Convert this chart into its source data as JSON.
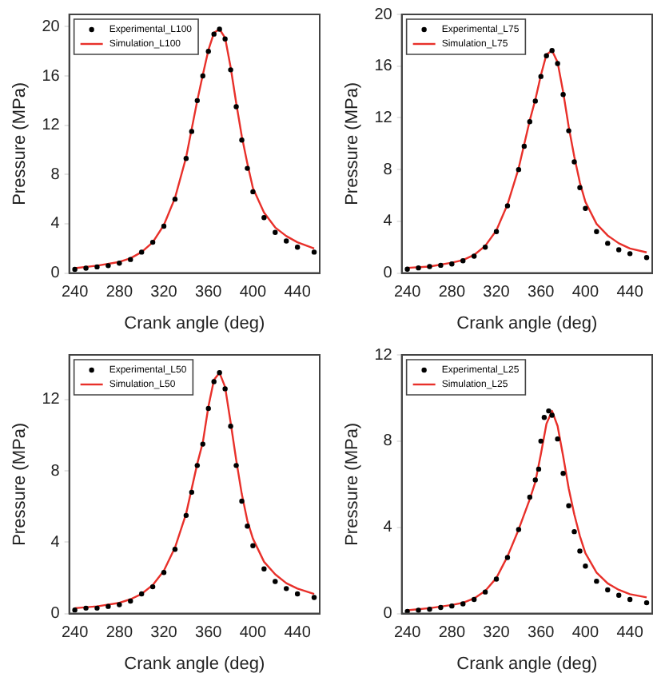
{
  "chart_data": [
    {
      "type": "line",
      "xlabel": "Crank angle (deg)",
      "ylabel": "Pressure (MPa)",
      "xlim": [
        235,
        460
      ],
      "xticks": [
        240,
        280,
        320,
        360,
        400,
        440
      ],
      "ylim": [
        0,
        21
      ],
      "yticks": [
        0,
        4,
        8,
        12,
        16,
        20
      ],
      "grid": false,
      "legend": "top left",
      "series": [
        {
          "name": "Experimental_L100",
          "type": "scatter",
          "marker": "circle",
          "color": "#000000",
          "x": [
            240,
            250,
            260,
            270,
            280,
            290,
            300,
            310,
            320,
            330,
            340,
            345,
            350,
            355,
            360,
            365,
            370,
            375,
            380,
            385,
            390,
            395,
            400,
            410,
            420,
            430,
            440,
            455
          ],
          "values": [
            0.3,
            0.4,
            0.5,
            0.6,
            0.8,
            1.1,
            1.7,
            2.5,
            3.8,
            6,
            9.3,
            11.5,
            14,
            16,
            18,
            19.4,
            19.8,
            19,
            16.5,
            13.5,
            10.8,
            8.5,
            6.6,
            4.5,
            3.3,
            2.6,
            2.1,
            1.7
          ]
        },
        {
          "name": "Simulation_L100",
          "type": "line",
          "color": "#e8302a",
          "x": [
            240,
            260,
            280,
            290,
            300,
            310,
            320,
            330,
            340,
            350,
            355,
            360,
            365,
            370,
            375,
            380,
            385,
            390,
            395,
            400,
            410,
            420,
            430,
            440,
            455
          ],
          "values": [
            0.4,
            0.6,
            0.9,
            1.2,
            1.7,
            2.5,
            3.9,
            6.1,
            9.4,
            14,
            16.1,
            18.1,
            19.5,
            19.8,
            19.1,
            16.7,
            13.8,
            11.1,
            8.9,
            6.9,
            4.9,
            3.7,
            3,
            2.5,
            2
          ]
        }
      ]
    },
    {
      "type": "line",
      "xlabel": "Crank angle (deg)",
      "ylabel": "Pressure (MPa)",
      "xlim": [
        235,
        460
      ],
      "xticks": [
        240,
        280,
        320,
        360,
        400,
        440
      ],
      "ylim": [
        0,
        20
      ],
      "yticks": [
        0,
        4,
        8,
        12,
        16,
        20
      ],
      "grid": false,
      "legend": "top left",
      "series": [
        {
          "name": "Experimental_L75",
          "type": "scatter",
          "marker": "circle",
          "color": "#000000",
          "x": [
            240,
            250,
            260,
            270,
            280,
            290,
            300,
            310,
            320,
            330,
            340,
            345,
            350,
            355,
            360,
            365,
            370,
            375,
            380,
            385,
            390,
            395,
            400,
            410,
            420,
            430,
            440,
            455
          ],
          "values": [
            0.3,
            0.4,
            0.5,
            0.6,
            0.7,
            0.95,
            1.3,
            2,
            3.2,
            5.2,
            8,
            9.8,
            11.7,
            13.3,
            15.2,
            16.8,
            17.2,
            16.2,
            13.8,
            11,
            8.6,
            6.6,
            5,
            3.2,
            2.3,
            1.8,
            1.5,
            1.2
          ]
        },
        {
          "name": "Simulation_L75",
          "type": "line",
          "color": "#e8302a",
          "x": [
            240,
            260,
            280,
            290,
            300,
            310,
            320,
            330,
            340,
            350,
            355,
            360,
            365,
            370,
            375,
            380,
            385,
            390,
            395,
            400,
            410,
            420,
            430,
            440,
            455
          ],
          "values": [
            0.4,
            0.5,
            0.8,
            1,
            1.4,
            2.1,
            3.3,
            5.3,
            8.1,
            11.8,
            13.4,
            15.3,
            16.9,
            17.2,
            16.3,
            14,
            11.3,
            9,
            7,
            5.5,
            3.8,
            2.9,
            2.3,
            1.9,
            1.6
          ]
        }
      ]
    },
    {
      "type": "line",
      "xlabel": "Crank angle (deg)",
      "ylabel": "Pressure (MPa)",
      "xlim": [
        235,
        460
      ],
      "xticks": [
        240,
        280,
        320,
        360,
        400,
        440
      ],
      "ylim": [
        0,
        14.5
      ],
      "yticks": [
        0,
        4,
        8,
        12
      ],
      "grid": false,
      "legend": "top left",
      "series": [
        {
          "name": "Experimental_L50",
          "type": "scatter",
          "marker": "circle",
          "color": "#000000",
          "x": [
            240,
            250,
            260,
            270,
            280,
            290,
            300,
            310,
            320,
            330,
            340,
            345,
            350,
            355,
            360,
            365,
            370,
            375,
            380,
            385,
            390,
            395,
            400,
            410,
            420,
            430,
            440,
            455
          ],
          "values": [
            0.2,
            0.3,
            0.3,
            0.4,
            0.5,
            0.7,
            1.1,
            1.5,
            2.3,
            3.6,
            5.5,
            6.8,
            8.3,
            9.5,
            11.5,
            13,
            13.5,
            12.6,
            10.5,
            8.3,
            6.3,
            4.9,
            3.8,
            2.5,
            1.8,
            1.4,
            1.1,
            0.9
          ]
        },
        {
          "name": "Simulation_L50",
          "type": "line",
          "color": "#e8302a",
          "x": [
            240,
            260,
            280,
            290,
            300,
            310,
            320,
            330,
            340,
            350,
            355,
            360,
            365,
            370,
            375,
            380,
            385,
            390,
            395,
            400,
            410,
            420,
            430,
            440,
            455
          ],
          "values": [
            0.3,
            0.4,
            0.6,
            0.8,
            1.1,
            1.6,
            2.4,
            3.7,
            5.6,
            8.4,
            9.6,
            11.6,
            13.1,
            13.5,
            12.7,
            10.7,
            8.6,
            6.7,
            5.2,
            4.2,
            2.9,
            2.2,
            1.7,
            1.4,
            1.1
          ]
        }
      ]
    },
    {
      "type": "line",
      "xlabel": "Crank angle (deg)",
      "ylabel": "Pressure (MPa)",
      "xlim": [
        235,
        460
      ],
      "xticks": [
        240,
        280,
        320,
        360,
        400,
        440
      ],
      "ylim": [
        0,
        12
      ],
      "yticks": [
        0,
        4,
        8,
        12
      ],
      "grid": false,
      "legend": "top left",
      "series": [
        {
          "name": "Experimental_L25",
          "type": "scatter",
          "marker": "circle",
          "color": "#000000",
          "x": [
            240,
            250,
            260,
            270,
            280,
            290,
            300,
            310,
            320,
            330,
            340,
            350,
            355,
            358,
            360,
            363,
            367,
            370,
            375,
            380,
            385,
            390,
            395,
            400,
            410,
            420,
            430,
            440,
            455
          ],
          "values": [
            0.1,
            0.15,
            0.2,
            0.28,
            0.35,
            0.45,
            0.65,
            1,
            1.6,
            2.6,
            3.9,
            5.4,
            6.2,
            6.7,
            8,
            9.1,
            9.4,
            9.2,
            8.1,
            6.5,
            5,
            3.8,
            2.9,
            2.2,
            1.5,
            1.1,
            0.85,
            0.65,
            0.5
          ]
        },
        {
          "name": "Simulation_L25",
          "type": "line",
          "color": "#e8302a",
          "x": [
            240,
            260,
            280,
            290,
            300,
            310,
            320,
            330,
            340,
            350,
            355,
            360,
            365,
            370,
            375,
            380,
            385,
            390,
            395,
            400,
            410,
            420,
            430,
            440,
            455
          ],
          "values": [
            0.15,
            0.25,
            0.4,
            0.5,
            0.7,
            1.05,
            1.65,
            2.65,
            3.9,
            5.3,
            6.1,
            7.4,
            8.8,
            9.4,
            8.7,
            7.3,
            5.8,
            4.6,
            3.6,
            2.8,
            1.9,
            1.4,
            1.1,
            0.9,
            0.75
          ]
        }
      ]
    }
  ]
}
